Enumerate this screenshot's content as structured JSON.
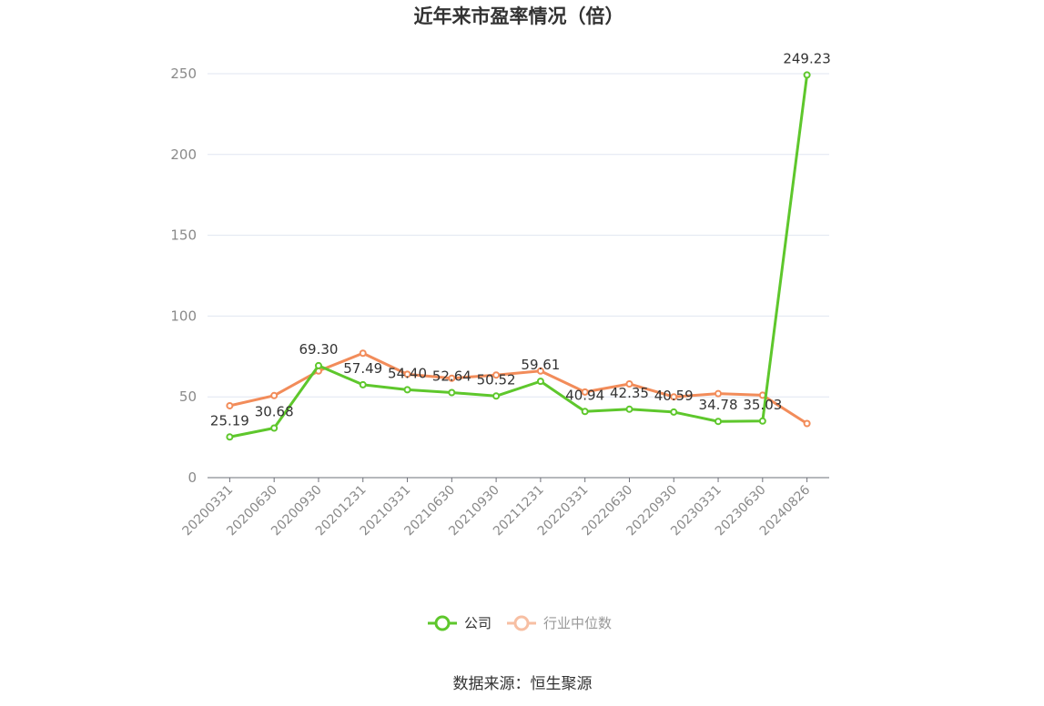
{
  "chart_data": {
    "type": "line",
    "title": "近年来市盈率情况（倍）",
    "categories": [
      "20200331",
      "20200630",
      "20200930",
      "20201231",
      "20210331",
      "20210630",
      "20210930",
      "20211231",
      "20220331",
      "20220630",
      "20220930",
      "20230331",
      "20230630",
      "20240826"
    ],
    "series": [
      {
        "name": "公司",
        "color": "#5ec72c",
        "values": [
          25.19,
          30.68,
          69.3,
          57.49,
          54.4,
          52.64,
          50.52,
          59.61,
          40.94,
          42.35,
          40.59,
          34.78,
          35.03,
          249.23
        ],
        "labels": [
          "25.19",
          "30.68",
          "69.30",
          "57.49",
          "54.40",
          "52.64",
          "50.52",
          "59.61",
          "40.94",
          "42.35",
          "40.59",
          "34.78",
          "35.03",
          "249.23"
        ]
      },
      {
        "name": "行业中位数",
        "color": "#f28c5a",
        "values": [
          44.5,
          50.8,
          66.0,
          77.0,
          64.0,
          61.5,
          63.5,
          66.0,
          53.0,
          58.0,
          50.0,
          52.0,
          51.0,
          33.5
        ]
      }
    ],
    "ylim": [
      0,
      250
    ],
    "yticks": [
      "0",
      "50",
      "100",
      "150",
      "200",
      "250"
    ],
    "grid": true,
    "legend_position": "bottom"
  },
  "footer": {
    "source": "数据来源：恒生聚源"
  }
}
